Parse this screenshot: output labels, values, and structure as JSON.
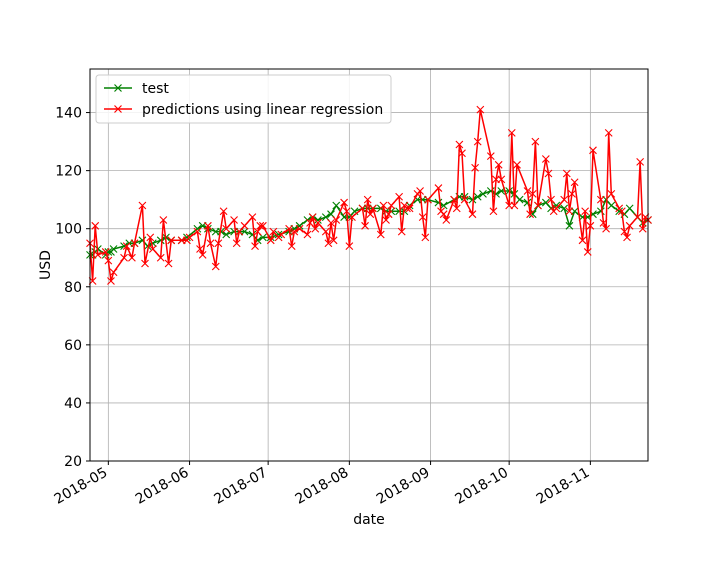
{
  "chart_data": {
    "type": "line",
    "title": "",
    "xlabel": "date",
    "ylabel": "USD",
    "x_range": [
      "2018-04-24",
      "2018-11-23"
    ],
    "ylim": [
      20,
      155
    ],
    "yticks": [
      20,
      40,
      60,
      80,
      100,
      120,
      140
    ],
    "xticks": [
      {
        "label": "2018-05",
        "date": "2018-05-01"
      },
      {
        "label": "2018-06",
        "date": "2018-06-01"
      },
      {
        "label": "2018-07",
        "date": "2018-07-01"
      },
      {
        "label": "2018-08",
        "date": "2018-08-01"
      },
      {
        "label": "2018-09",
        "date": "2018-09-01"
      },
      {
        "label": "2018-10",
        "date": "2018-10-01"
      },
      {
        "label": "2018-11",
        "date": "2018-11-01"
      }
    ],
    "grid": true,
    "legend_position": "top-left",
    "series": [
      {
        "name": "test",
        "color": "#008000",
        "marker": "x",
        "points": [
          [
            "2018-04-24",
            91
          ],
          [
            "2018-04-25",
            91
          ],
          [
            "2018-04-26",
            92
          ],
          [
            "2018-04-27",
            93
          ],
          [
            "2018-04-30",
            91
          ],
          [
            "2018-05-01",
            92
          ],
          [
            "2018-05-02",
            92
          ],
          [
            "2018-05-03",
            93
          ],
          [
            "2018-05-07",
            94
          ],
          [
            "2018-05-09",
            95
          ],
          [
            "2018-05-11",
            95
          ],
          [
            "2018-05-14",
            96
          ],
          [
            "2018-05-16",
            94
          ],
          [
            "2018-05-18",
            95
          ],
          [
            "2018-05-21",
            96
          ],
          [
            "2018-05-23",
            97
          ],
          [
            "2018-05-25",
            96
          ],
          [
            "2018-05-29",
            96
          ],
          [
            "2018-05-31",
            97
          ],
          [
            "2018-06-04",
            100
          ],
          [
            "2018-06-06",
            101
          ],
          [
            "2018-06-08",
            100
          ],
          [
            "2018-06-11",
            99
          ],
          [
            "2018-06-13",
            99
          ],
          [
            "2018-06-15",
            98
          ],
          [
            "2018-06-18",
            99
          ],
          [
            "2018-06-20",
            99
          ],
          [
            "2018-06-22",
            99
          ],
          [
            "2018-06-25",
            98
          ],
          [
            "2018-06-27",
            96
          ],
          [
            "2018-06-29",
            97
          ],
          [
            "2018-07-02",
            97
          ],
          [
            "2018-07-05",
            98
          ],
          [
            "2018-07-09",
            99
          ],
          [
            "2018-07-11",
            100
          ],
          [
            "2018-07-13",
            101
          ],
          [
            "2018-07-16",
            103
          ],
          [
            "2018-07-18",
            104
          ],
          [
            "2018-07-20",
            103
          ],
          [
            "2018-07-23",
            104
          ],
          [
            "2018-07-25",
            105
          ],
          [
            "2018-07-27",
            108
          ],
          [
            "2018-07-30",
            104
          ],
          [
            "2018-08-01",
            104
          ],
          [
            "2018-08-03",
            106
          ],
          [
            "2018-08-06",
            107
          ],
          [
            "2018-08-08",
            107
          ],
          [
            "2018-08-10",
            107
          ],
          [
            "2018-08-13",
            107
          ],
          [
            "2018-08-15",
            106
          ],
          [
            "2018-08-17",
            106
          ],
          [
            "2018-08-20",
            106
          ],
          [
            "2018-08-22",
            106
          ],
          [
            "2018-08-24",
            108
          ],
          [
            "2018-08-27",
            110
          ],
          [
            "2018-08-29",
            110
          ],
          [
            "2018-08-31",
            110
          ],
          [
            "2018-09-04",
            109
          ],
          [
            "2018-09-06",
            108
          ],
          [
            "2018-09-10",
            110
          ],
          [
            "2018-09-12",
            111
          ],
          [
            "2018-09-14",
            111
          ],
          [
            "2018-09-17",
            110
          ],
          [
            "2018-09-19",
            111
          ],
          [
            "2018-09-21",
            112
          ],
          [
            "2018-09-24",
            113
          ],
          [
            "2018-09-26",
            112
          ],
          [
            "2018-09-28",
            113
          ],
          [
            "2018-10-01",
            113
          ],
          [
            "2018-10-03",
            112
          ],
          [
            "2018-10-05",
            110
          ],
          [
            "2018-10-08",
            109
          ],
          [
            "2018-10-10",
            105
          ],
          [
            "2018-10-12",
            108
          ],
          [
            "2018-10-15",
            109
          ],
          [
            "2018-10-17",
            107
          ],
          [
            "2018-10-19",
            108
          ],
          [
            "2018-10-22",
            107
          ],
          [
            "2018-10-24",
            101
          ],
          [
            "2018-10-26",
            106
          ],
          [
            "2018-10-29",
            104
          ],
          [
            "2018-10-31",
            104
          ],
          [
            "2018-11-02",
            105
          ],
          [
            "2018-11-05",
            106
          ],
          [
            "2018-11-07",
            110
          ],
          [
            "2018-11-09",
            108
          ],
          [
            "2018-11-12",
            106
          ],
          [
            "2018-11-14",
            105
          ],
          [
            "2018-11-16",
            107
          ],
          [
            "2018-11-19",
            104
          ],
          [
            "2018-11-21",
            102
          ],
          [
            "2018-11-23",
            103
          ]
        ]
      },
      {
        "name": "predictions using linear regression",
        "color": "#ff0000",
        "marker": "x",
        "points": [
          [
            "2018-04-24",
            95
          ],
          [
            "2018-04-25",
            82
          ],
          [
            "2018-04-26",
            101
          ],
          [
            "2018-04-27",
            91
          ],
          [
            "2018-04-30",
            92
          ],
          [
            "2018-05-01",
            89
          ],
          [
            "2018-05-02",
            82
          ],
          [
            "2018-05-03",
            85
          ],
          [
            "2018-05-07",
            90
          ],
          [
            "2018-05-08",
            94
          ],
          [
            "2018-05-10",
            90
          ],
          [
            "2018-05-11",
            95
          ],
          [
            "2018-05-14",
            108
          ],
          [
            "2018-05-15",
            88
          ],
          [
            "2018-05-17",
            97
          ],
          [
            "2018-05-18",
            93
          ],
          [
            "2018-05-21",
            90
          ],
          [
            "2018-05-22",
            103
          ],
          [
            "2018-05-24",
            88
          ],
          [
            "2018-05-25",
            96
          ],
          [
            "2018-05-29",
            96
          ],
          [
            "2018-05-31",
            96
          ],
          [
            "2018-06-01",
            97
          ],
          [
            "2018-06-04",
            99
          ],
          [
            "2018-06-05",
            93
          ],
          [
            "2018-06-06",
            91
          ],
          [
            "2018-06-08",
            101
          ],
          [
            "2018-06-09",
            95
          ],
          [
            "2018-06-11",
            87
          ],
          [
            "2018-06-12",
            95
          ],
          [
            "2018-06-14",
            106
          ],
          [
            "2018-06-15",
            100
          ],
          [
            "2018-06-18",
            103
          ],
          [
            "2018-06-19",
            95
          ],
          [
            "2018-06-20",
            99
          ],
          [
            "2018-06-22",
            101
          ],
          [
            "2018-06-25",
            104
          ],
          [
            "2018-06-26",
            94
          ],
          [
            "2018-06-27",
            99
          ],
          [
            "2018-06-28",
            101
          ],
          [
            "2018-06-29",
            101
          ],
          [
            "2018-07-02",
            96
          ],
          [
            "2018-07-03",
            99
          ],
          [
            "2018-07-05",
            97
          ],
          [
            "2018-07-06",
            98
          ],
          [
            "2018-07-09",
            100
          ],
          [
            "2018-07-10",
            94
          ],
          [
            "2018-07-11",
            99
          ],
          [
            "2018-07-13",
            100
          ],
          [
            "2018-07-16",
            98
          ],
          [
            "2018-07-17",
            102
          ],
          [
            "2018-07-18",
            104
          ],
          [
            "2018-07-19",
            100
          ],
          [
            "2018-07-20",
            102
          ],
          [
            "2018-07-23",
            99
          ],
          [
            "2018-07-24",
            95
          ],
          [
            "2018-07-25",
            102
          ],
          [
            "2018-07-26",
            96
          ],
          [
            "2018-07-27",
            103
          ],
          [
            "2018-07-30",
            109
          ],
          [
            "2018-07-31",
            106
          ],
          [
            "2018-08-01",
            94
          ],
          [
            "2018-08-02",
            104
          ],
          [
            "2018-08-06",
            107
          ],
          [
            "2018-08-07",
            101
          ],
          [
            "2018-08-08",
            110
          ],
          [
            "2018-08-09",
            105
          ],
          [
            "2018-08-10",
            107
          ],
          [
            "2018-08-13",
            98
          ],
          [
            "2018-08-14",
            108
          ],
          [
            "2018-08-15",
            103
          ],
          [
            "2018-08-16",
            105
          ],
          [
            "2018-08-17",
            108
          ],
          [
            "2018-08-20",
            111
          ],
          [
            "2018-08-21",
            99
          ],
          [
            "2018-08-22",
            108
          ],
          [
            "2018-08-23",
            107
          ],
          [
            "2018-08-24",
            107
          ],
          [
            "2018-08-27",
            112
          ],
          [
            "2018-08-28",
            113
          ],
          [
            "2018-08-29",
            104
          ],
          [
            "2018-08-30",
            97
          ],
          [
            "2018-08-31",
            110
          ],
          [
            "2018-09-04",
            114
          ],
          [
            "2018-09-05",
            106
          ],
          [
            "2018-09-06",
            105
          ],
          [
            "2018-09-07",
            103
          ],
          [
            "2018-09-10",
            110
          ],
          [
            "2018-09-11",
            107
          ],
          [
            "2018-09-12",
            129
          ],
          [
            "2018-09-13",
            126
          ],
          [
            "2018-09-14",
            110
          ],
          [
            "2018-09-17",
            105
          ],
          [
            "2018-09-18",
            121
          ],
          [
            "2018-09-19",
            130
          ],
          [
            "2018-09-20",
            141
          ],
          [
            "2018-09-24",
            125
          ],
          [
            "2018-09-25",
            106
          ],
          [
            "2018-09-26",
            117
          ],
          [
            "2018-09-27",
            122
          ],
          [
            "2018-09-28",
            117
          ],
          [
            "2018-10-01",
            108
          ],
          [
            "2018-10-02",
            133
          ],
          [
            "2018-10-03",
            108
          ],
          [
            "2018-10-04",
            122
          ],
          [
            "2018-10-08",
            113
          ],
          [
            "2018-10-09",
            105
          ],
          [
            "2018-10-10",
            112
          ],
          [
            "2018-10-11",
            130
          ],
          [
            "2018-10-12",
            108
          ],
          [
            "2018-10-15",
            124
          ],
          [
            "2018-10-16",
            119
          ],
          [
            "2018-10-17",
            110
          ],
          [
            "2018-10-18",
            106
          ],
          [
            "2018-10-19",
            107
          ],
          [
            "2018-10-22",
            110
          ],
          [
            "2018-10-23",
            119
          ],
          [
            "2018-10-24",
            106
          ],
          [
            "2018-10-25",
            112
          ],
          [
            "2018-10-26",
            116
          ],
          [
            "2018-10-29",
            96
          ],
          [
            "2018-10-30",
            106
          ],
          [
            "2018-10-31",
            92
          ],
          [
            "2018-11-01",
            101
          ],
          [
            "2018-11-02",
            127
          ],
          [
            "2018-11-05",
            110
          ],
          [
            "2018-11-06",
            102
          ],
          [
            "2018-11-07",
            100
          ],
          [
            "2018-11-08",
            133
          ],
          [
            "2018-11-09",
            112
          ],
          [
            "2018-11-12",
            107
          ],
          [
            "2018-11-13",
            106
          ],
          [
            "2018-11-14",
            99
          ],
          [
            "2018-11-15",
            97
          ],
          [
            "2018-11-16",
            101
          ],
          [
            "2018-11-19",
            104
          ],
          [
            "2018-11-20",
            123
          ],
          [
            "2018-11-21",
            100
          ],
          [
            "2018-11-22",
            104
          ],
          [
            "2018-11-23",
            103
          ]
        ]
      }
    ]
  }
}
